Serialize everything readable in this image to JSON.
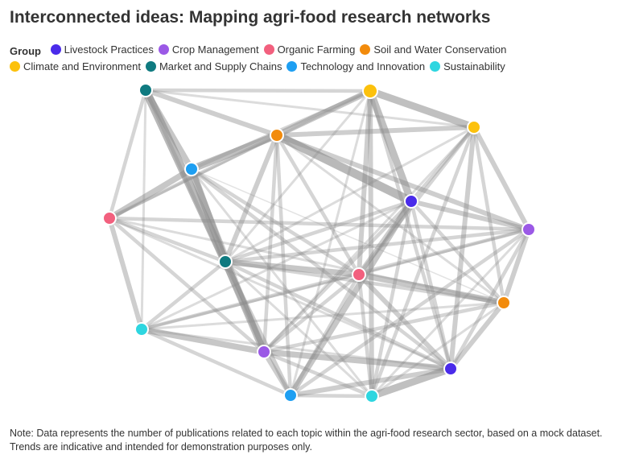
{
  "chart_data": {
    "type": "network",
    "title": "Interconnected ideas: Mapping agri-food research networks",
    "legend_title": "Group",
    "groups": [
      {
        "name": "Livestock Practices",
        "color": "#4a2bea"
      },
      {
        "name": "Crop Management",
        "color": "#9b59e6"
      },
      {
        "name": "Organic Farming",
        "color": "#f2607e"
      },
      {
        "name": "Soil and Water Conservation",
        "color": "#f28b0c"
      },
      {
        "name": "Climate and Environment",
        "color": "#fcc10c"
      },
      {
        "name": "Market and Supply Chains",
        "color": "#0f7a80"
      },
      {
        "name": "Technology and Innovation",
        "color": "#1e9ff2"
      },
      {
        "name": "Sustainability",
        "color": "#2ed6e0"
      }
    ],
    "nodes": [
      {
        "id": 0,
        "group": "Market and Supply Chains"
      },
      {
        "id": 1,
        "group": "Climate and Environment"
      },
      {
        "id": 2,
        "group": "Climate and Environment"
      },
      {
        "id": 3,
        "group": "Soil and Water Conservation"
      },
      {
        "id": 4,
        "group": "Technology and Innovation"
      },
      {
        "id": 5,
        "group": "Livestock Practices"
      },
      {
        "id": 6,
        "group": "Organic Farming"
      },
      {
        "id": 7,
        "group": "Crop Management"
      },
      {
        "id": 8,
        "group": "Market and Supply Chains"
      },
      {
        "id": 9,
        "group": "Organic Farming"
      },
      {
        "id": 10,
        "group": "Soil and Water Conservation"
      },
      {
        "id": 11,
        "group": "Sustainability"
      },
      {
        "id": 12,
        "group": "Crop Management"
      },
      {
        "id": 13,
        "group": "Livestock Practices"
      },
      {
        "id": 14,
        "group": "Technology and Innovation"
      },
      {
        "id": 15,
        "group": "Sustainability"
      }
    ],
    "links": [
      [
        0,
        1,
        3
      ],
      [
        0,
        4,
        5
      ],
      [
        0,
        8,
        7
      ],
      [
        0,
        6,
        3
      ],
      [
        0,
        11,
        2
      ],
      [
        0,
        3,
        4
      ],
      [
        0,
        2,
        2
      ],
      [
        0,
        12,
        3
      ],
      [
        1,
        2,
        6
      ],
      [
        1,
        3,
        5
      ],
      [
        1,
        5,
        6
      ],
      [
        1,
        4,
        3
      ],
      [
        1,
        9,
        4
      ],
      [
        1,
        14,
        2
      ],
      [
        1,
        15,
        4
      ],
      [
        1,
        6,
        2
      ],
      [
        1,
        8,
        2
      ],
      [
        1,
        13,
        3
      ],
      [
        2,
        3,
        4
      ],
      [
        2,
        5,
        3
      ],
      [
        2,
        7,
        4
      ],
      [
        2,
        9,
        3
      ],
      [
        2,
        10,
        3
      ],
      [
        2,
        13,
        4
      ],
      [
        2,
        15,
        3
      ],
      [
        2,
        8,
        2
      ],
      [
        2,
        12,
        2
      ],
      [
        3,
        4,
        6
      ],
      [
        3,
        5,
        7
      ],
      [
        3,
        8,
        4
      ],
      [
        3,
        6,
        3
      ],
      [
        3,
        7,
        4
      ],
      [
        3,
        12,
        3
      ],
      [
        3,
        14,
        3
      ],
      [
        3,
        9,
        3
      ],
      [
        3,
        10,
        2
      ],
      [
        4,
        8,
        6
      ],
      [
        4,
        6,
        5
      ],
      [
        4,
        12,
        4
      ],
      [
        4,
        9,
        3
      ],
      [
        4,
        13,
        3
      ],
      [
        4,
        15,
        2
      ],
      [
        4,
        10,
        1
      ],
      [
        5,
        7,
        4
      ],
      [
        5,
        8,
        3
      ],
      [
        5,
        9,
        4
      ],
      [
        5,
        10,
        3
      ],
      [
        5,
        14,
        5
      ],
      [
        5,
        13,
        3
      ],
      [
        5,
        12,
        3
      ],
      [
        5,
        15,
        3
      ],
      [
        5,
        11,
        2
      ],
      [
        6,
        8,
        3
      ],
      [
        6,
        11,
        4
      ],
      [
        6,
        12,
        3
      ],
      [
        6,
        7,
        3
      ],
      [
        6,
        10,
        2
      ],
      [
        6,
        13,
        2
      ],
      [
        7,
        8,
        3
      ],
      [
        7,
        10,
        4
      ],
      [
        7,
        9,
        2
      ],
      [
        7,
        13,
        3
      ],
      [
        7,
        15,
        2
      ],
      [
        7,
        11,
        3
      ],
      [
        7,
        14,
        3
      ],
      [
        8,
        9,
        5
      ],
      [
        8,
        12,
        6
      ],
      [
        8,
        14,
        4
      ],
      [
        8,
        13,
        3
      ],
      [
        8,
        11,
        3
      ],
      [
        8,
        10,
        3
      ],
      [
        8,
        15,
        2
      ],
      [
        9,
        10,
        5
      ],
      [
        9,
        13,
        4
      ],
      [
        9,
        14,
        3
      ],
      [
        9,
        15,
        3
      ],
      [
        9,
        12,
        3
      ],
      [
        9,
        11,
        2
      ],
      [
        10,
        13,
        4
      ],
      [
        10,
        15,
        2
      ],
      [
        10,
        12,
        3
      ],
      [
        10,
        11,
        2
      ],
      [
        11,
        12,
        5
      ],
      [
        11,
        14,
        3
      ],
      [
        11,
        13,
        2
      ],
      [
        12,
        14,
        4
      ],
      [
        12,
        15,
        3
      ],
      [
        12,
        13,
        5
      ],
      [
        13,
        14,
        4
      ],
      [
        13,
        15,
        6
      ],
      [
        14,
        15,
        3
      ]
    ]
  },
  "note": "Note: Data represents the number of publications related to each topic within the agri-food research sector, based on a mock dataset. Trends are indicative and intended for demonstration purposes only."
}
